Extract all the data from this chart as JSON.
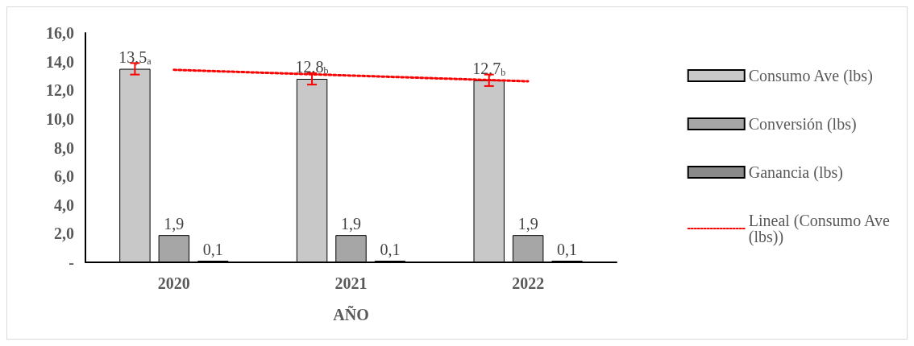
{
  "chart_data": {
    "type": "bar",
    "xlabel": "AÑO",
    "categories": [
      "2020",
      "2021",
      "2022"
    ],
    "series": [
      {
        "name": "Consumo Ave (lbs)",
        "color": "#c8c8c8",
        "values": [
          13.5,
          12.8,
          12.7
        ],
        "errors": [
          0.4,
          0.4,
          0.4
        ],
        "value_labels": [
          "13,5$_{a}$",
          "12,8$_{b}$",
          "12,7$_{b}$"
        ]
      },
      {
        "name": "Conversión (lbs)",
        "color": "#a6a6a6",
        "values": [
          1.9,
          1.9,
          1.9
        ],
        "value_labels": [
          "1,9",
          "1,9",
          "1,9"
        ]
      },
      {
        "name": "Ganancia (lbs)",
        "color": "#8a8a8a",
        "values": [
          0.1,
          0.1,
          0.1
        ],
        "value_labels": [
          "0,1",
          "0,1",
          "0,1"
        ]
      },
      {
        "name": "Lineal (Consumo Ave (lbs))",
        "type": "line",
        "color": "#ff0000",
        "line_style": "dotted",
        "marker": "none",
        "values": [
          13.43,
          13.03,
          12.63
        ]
      }
    ],
    "ylim": [
      0,
      16
    ],
    "yticks": [
      {
        "value": 0,
        "label": "-"
      },
      {
        "value": 2,
        "label": "2,0"
      },
      {
        "value": 4,
        "label": "4,0"
      },
      {
        "value": 6,
        "label": "6,0"
      },
      {
        "value": 8,
        "label": "8,0"
      },
      {
        "value": 10,
        "label": "10,0"
      },
      {
        "value": 12,
        "label": "12,0"
      },
      {
        "value": 14,
        "label": "14,0"
      },
      {
        "value": 16,
        "label": "16,0"
      }
    ],
    "grid": false,
    "legend": "right"
  }
}
